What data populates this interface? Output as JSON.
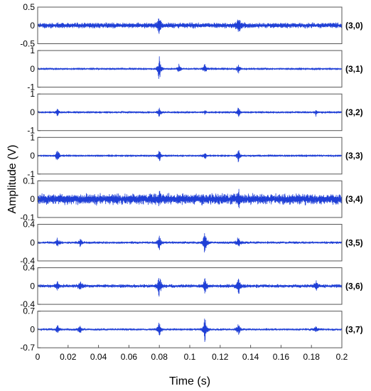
{
  "chart_data": {
    "type": "line",
    "xlabel": "Time (s)",
    "ylabel": "Amplitude (V)",
    "xlim": [
      0,
      0.2
    ],
    "x_ticks": [
      "0",
      "0.02",
      "0.04",
      "0.06",
      "0.08",
      "0.1",
      "0.12",
      "0.14",
      "0.16",
      "0.18",
      "0.2"
    ],
    "x_tick_values": [
      0,
      0.02,
      0.04,
      0.06,
      0.08,
      0.1,
      0.12,
      0.14,
      0.16,
      0.18,
      0.2
    ],
    "grid": false,
    "line_color": "#1f3fd6",
    "panels": [
      {
        "name": "(3,0)",
        "ylim": [
          -0.5,
          0.5
        ],
        "y_ticks": [
          "0.5",
          "0",
          "-0.5"
        ],
        "y_tick_values": [
          0.5,
          0,
          -0.5
        ],
        "noise": 0.07,
        "peaks": [
          {
            "t": 0.08,
            "a": 0.3
          },
          {
            "t": 0.132,
            "a": 0.35
          }
        ]
      },
      {
        "name": "(3,1)",
        "ylim": [
          -1,
          1
        ],
        "y_ticks": [
          "1",
          "0",
          "-1"
        ],
        "y_tick_values": [
          1,
          0,
          -1
        ],
        "noise": 0.04,
        "peaks": [
          {
            "t": 0.08,
            "a": 0.85
          },
          {
            "t": 0.093,
            "a": 0.3
          },
          {
            "t": 0.11,
            "a": 0.4
          },
          {
            "t": 0.132,
            "a": 0.35
          }
        ]
      },
      {
        "name": "(3,2)",
        "ylim": [
          -1,
          1
        ],
        "y_ticks": [
          "1",
          "0",
          "-1"
        ],
        "y_tick_values": [
          1,
          0,
          -1
        ],
        "noise": 0.04,
        "peaks": [
          {
            "t": 0.013,
            "a": 0.25
          },
          {
            "t": 0.08,
            "a": 0.35
          },
          {
            "t": 0.11,
            "a": 0.15
          },
          {
            "t": 0.132,
            "a": 0.35
          },
          {
            "t": 0.183,
            "a": 0.2
          }
        ]
      },
      {
        "name": "(3,3)",
        "ylim": [
          -1,
          1
        ],
        "y_ticks": [
          "1",
          "0",
          "-1"
        ],
        "y_tick_values": [
          1,
          0,
          -1
        ],
        "noise": 0.04,
        "peaks": [
          {
            "t": 0.013,
            "a": 0.5
          },
          {
            "t": 0.08,
            "a": 0.45
          },
          {
            "t": 0.11,
            "a": 0.25
          },
          {
            "t": 0.132,
            "a": 0.45
          }
        ]
      },
      {
        "name": "(3,4)",
        "ylim": [
          -0.1,
          0.1
        ],
        "y_ticks": [
          "0.1",
          "0",
          "-0.1"
        ],
        "y_tick_values": [
          0.1,
          0,
          -0.1
        ],
        "noise": 0.028,
        "peaks": [
          {
            "t": 0.08,
            "a": 0.035
          },
          {
            "t": 0.132,
            "a": 0.035
          }
        ]
      },
      {
        "name": "(3,5)",
        "ylim": [
          -0.4,
          0.4
        ],
        "y_ticks": [
          "0.4",
          "0",
          "-0.4"
        ],
        "y_tick_values": [
          0.4,
          0,
          -0.4
        ],
        "noise": 0.025,
        "peaks": [
          {
            "t": 0.013,
            "a": 0.12
          },
          {
            "t": 0.028,
            "a": 0.1
          },
          {
            "t": 0.08,
            "a": 0.2
          },
          {
            "t": 0.11,
            "a": 0.35
          },
          {
            "t": 0.132,
            "a": 0.18
          }
        ]
      },
      {
        "name": "(3,6)",
        "ylim": [
          -0.4,
          0.4
        ],
        "y_ticks": [
          "0.4",
          "0",
          "-0.4"
        ],
        "y_tick_values": [
          0.4,
          0,
          -0.4
        ],
        "noise": 0.035,
        "peaks": [
          {
            "t": 0.013,
            "a": 0.1
          },
          {
            "t": 0.028,
            "a": 0.12
          },
          {
            "t": 0.08,
            "a": 0.3
          },
          {
            "t": 0.11,
            "a": 0.2
          },
          {
            "t": 0.132,
            "a": 0.25
          },
          {
            "t": 0.183,
            "a": 0.15
          }
        ]
      },
      {
        "name": "(3,7)",
        "ylim": [
          -0.7,
          0.7
        ],
        "y_ticks": [
          "0.7",
          "0",
          "-0.7"
        ],
        "y_tick_values": [
          0.7,
          0,
          -0.7
        ],
        "noise": 0.04,
        "peaks": [
          {
            "t": 0.013,
            "a": 0.2
          },
          {
            "t": 0.028,
            "a": 0.2
          },
          {
            "t": 0.08,
            "a": 0.4
          },
          {
            "t": 0.11,
            "a": 0.6
          },
          {
            "t": 0.132,
            "a": 0.3
          },
          {
            "t": 0.183,
            "a": 0.15
          }
        ]
      }
    ]
  }
}
